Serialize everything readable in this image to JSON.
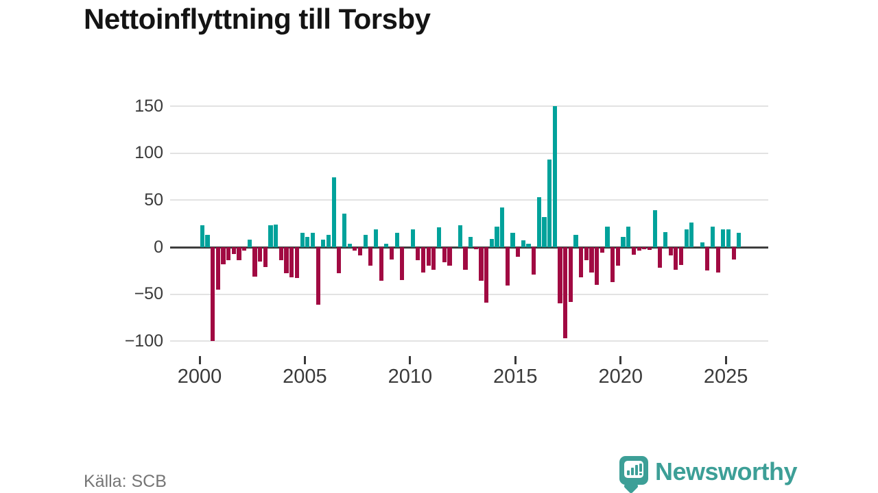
{
  "title": "Nettoinflyttning till Torsby",
  "source": "Källa: SCB",
  "branding": {
    "name": "Newsworthy",
    "logo": "speech-bubble-bar-chart-icon",
    "color": "#3d9f97"
  },
  "colors": {
    "title": "#141414",
    "positive_bar": "#00a29b",
    "negative_bar": "#a10a42",
    "grid": "#e2e2e2",
    "zero_line": "#3d3d3d",
    "axis_text": "#3a3a3a",
    "source_text": "#757575",
    "background": "#ffffff"
  },
  "chart_data": {
    "type": "bar",
    "title": "Nettoinflyttning till Torsby",
    "xlabel": "",
    "ylabel": "",
    "frequency": "quarterly",
    "x_start": "2000-Q1",
    "x_end": "2025-Q3",
    "values": [
      23,
      13,
      -100,
      -45,
      -18,
      -14,
      -7,
      -14,
      -4,
      8,
      -31,
      -15,
      -21,
      23,
      24,
      -14,
      -28,
      -32,
      -33,
      15,
      11,
      15,
      -61,
      8,
      13,
      74,
      -28,
      36,
      4,
      -4,
      -9,
      13,
      -20,
      19,
      -36,
      4,
      -13,
      15,
      -35,
      0,
      19,
      -14,
      -27,
      -20,
      -24,
      21,
      -16,
      -20,
      0,
      23,
      -24,
      11,
      -2,
      -36,
      -59,
      9,
      22,
      42,
      -41,
      15,
      -10,
      7,
      4,
      -29,
      53,
      32,
      93,
      150,
      -60,
      -97,
      -58,
      13,
      -32,
      -14,
      -27,
      -40,
      -6,
      22,
      -37,
      -20,
      11,
      22,
      -8,
      -4,
      -2,
      -3,
      39,
      -22,
      16,
      -9,
      -24,
      -19,
      19,
      26,
      0,
      5,
      -25,
      22,
      -27,
      19,
      19,
      -13,
      15
    ],
    "y_ticks": [
      150,
      100,
      50,
      0,
      -50,
      -100
    ],
    "y_tick_labels": [
      "150",
      "100",
      "50",
      "0",
      "−50",
      "−100"
    ],
    "x_tick_years": [
      2000,
      2005,
      2010,
      2015,
      2020,
      2025
    ],
    "x_tick_labels": [
      "2000",
      "2005",
      "2010",
      "2015",
      "2020",
      "2025"
    ],
    "ylim": [
      -115,
      160
    ],
    "grid": "horizontal",
    "legend": "none",
    "positive_color": "#00a29b",
    "negative_color": "#a10a42"
  }
}
